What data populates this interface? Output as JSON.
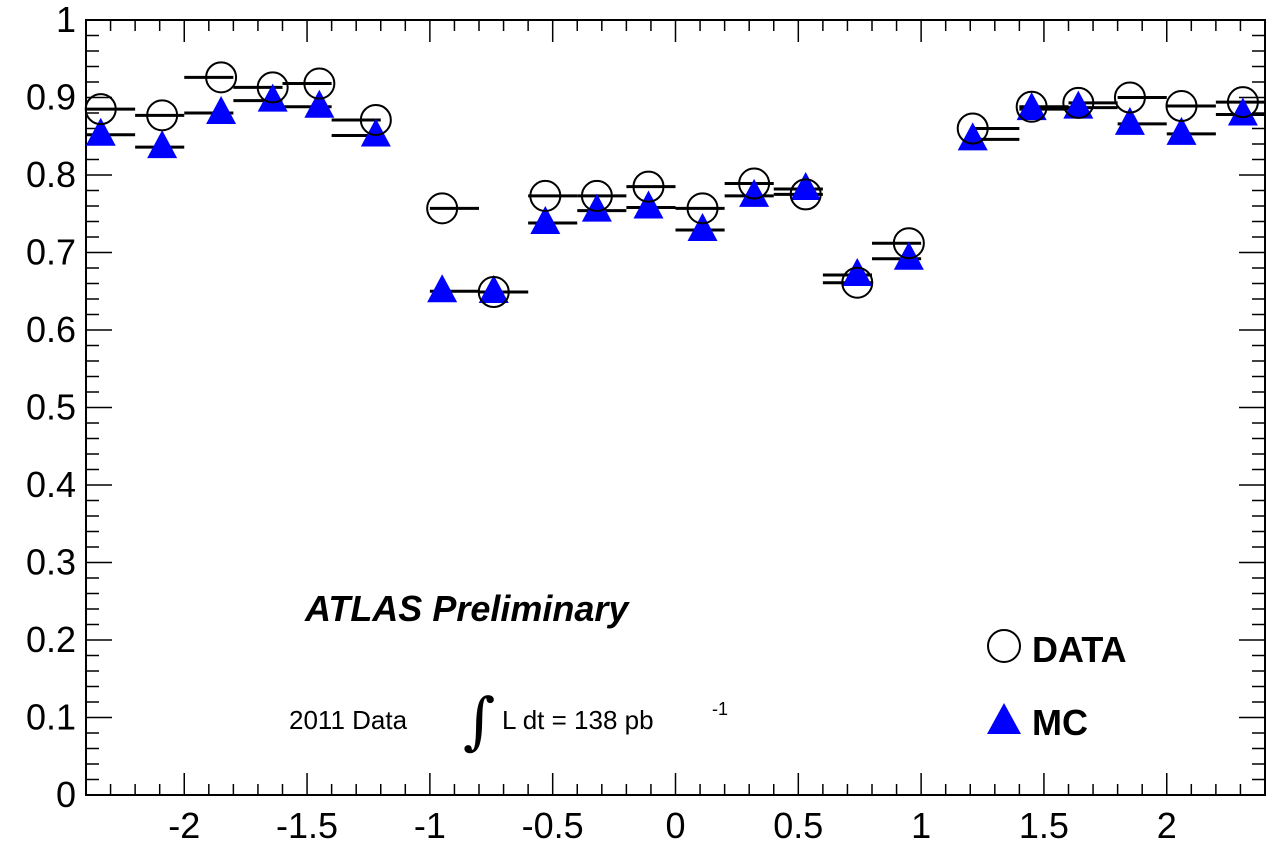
{
  "chart_data": {
    "type": "scatter",
    "xlim": [
      -2.4,
      2.4
    ],
    "ylim": [
      0,
      1
    ],
    "x_ticks": [
      -2,
      -1.5,
      -1,
      -0.5,
      0,
      0.5,
      1,
      1.5,
      2
    ],
    "x_tick_labels": [
      "-2",
      "-1.5",
      "-1",
      "-0.5",
      "0",
      "0.5",
      "1",
      "1.5",
      "2"
    ],
    "y_ticks": [
      0,
      0.1,
      0.2,
      0.3,
      0.4,
      0.5,
      0.6,
      0.7,
      0.8,
      0.9,
      1
    ],
    "y_tick_labels": [
      "0",
      "0.1",
      "0.2",
      "0.3",
      "0.4",
      "0.5",
      "0.6",
      "0.7",
      "0.8",
      "0.9",
      "1"
    ],
    "bin_edges": [
      -2.4,
      -2.2,
      -2.0,
      -1.8,
      -1.6,
      -1.4,
      -1.2,
      -1.0,
      -0.8,
      -0.6,
      -0.4,
      -0.2,
      0.0,
      0.2,
      0.4,
      0.6,
      0.8,
      1.0,
      1.2,
      1.4,
      1.6,
      1.8,
      2.0,
      2.2,
      2.4
    ],
    "x": [
      -2.34,
      -2.09,
      -1.85,
      -1.64,
      -1.45,
      -1.22,
      -0.95,
      -0.74,
      -0.53,
      -0.32,
      -0.11,
      0.11,
      0.32,
      0.53,
      0.74,
      0.95,
      1.21,
      1.45,
      1.64,
      1.85,
      2.06,
      2.31
    ],
    "series": [
      {
        "name": "DATA",
        "marker": "open-circle",
        "color": "#000000",
        "values": [
          0.885,
          0.877,
          0.926,
          0.913,
          0.918,
          0.871,
          0.757,
          0.649,
          0.773,
          0.773,
          0.785,
          0.757,
          0.789,
          0.775,
          0.661,
          0.712,
          0.86,
          0.888,
          0.893,
          0.9,
          0.889,
          0.894
        ]
      },
      {
        "name": "MC",
        "marker": "filled-triangle",
        "color": "#0000ff",
        "values": [
          0.852,
          0.836,
          0.88,
          0.896,
          0.888,
          0.851,
          0.65,
          0.649,
          0.738,
          0.754,
          0.758,
          0.729,
          0.773,
          0.782,
          0.671,
          0.692,
          0.846,
          0.885,
          0.887,
          0.866,
          0.853,
          0.878
        ]
      }
    ],
    "annotations": {
      "experiment": "ATLAS Preliminary",
      "lumi_prefix": "2011 Data",
      "integral_symbol": "∫",
      "lumi_body": "L dt = 138 pb",
      "lumi_superscript": "-1"
    },
    "legend": {
      "placement": "bottom-right",
      "entries": [
        "DATA",
        "MC"
      ]
    },
    "grid": false
  }
}
